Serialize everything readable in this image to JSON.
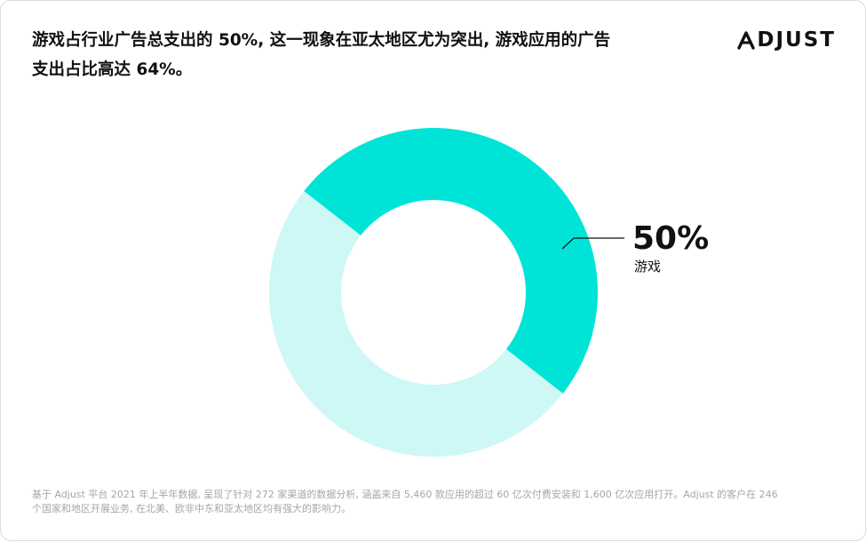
{
  "header": {
    "title": "游戏占行业广告总支出的 50%, 这一现象在亚太地区尤为突出, 游戏应用的广告\n支出占比高达 64%。",
    "logo_text": "DJUST",
    "logo_mark_icon": "adjust-a-mark-icon"
  },
  "chart_data": {
    "type": "pie",
    "donut": true,
    "slices": [
      {
        "label": "游戏",
        "value": 50,
        "color": "#00e4d8",
        "labelled": true
      },
      {
        "label": "",
        "value": 50,
        "color": "#cdf8f5",
        "labelled": false
      }
    ],
    "data_label": {
      "value_text": "50%",
      "category_text": "游戏"
    }
  },
  "footer": {
    "note": "基于 Adjust 平台 2021 年上半年数据, 呈现了针对 272 家渠道的数据分析, 涵盖来自 5,460 款应用的超过 60 亿次付费安装和 1,600 亿次应用打开。Adjust 的客户在 246\n个国家和地区开展业务, 在北美、欧非中东和亚太地区均有强大的影响力。"
  },
  "colors": {
    "accent": "#00e4d8",
    "accent_light": "#cdf8f5",
    "text": "#111111",
    "muted": "#a6a6a6"
  }
}
